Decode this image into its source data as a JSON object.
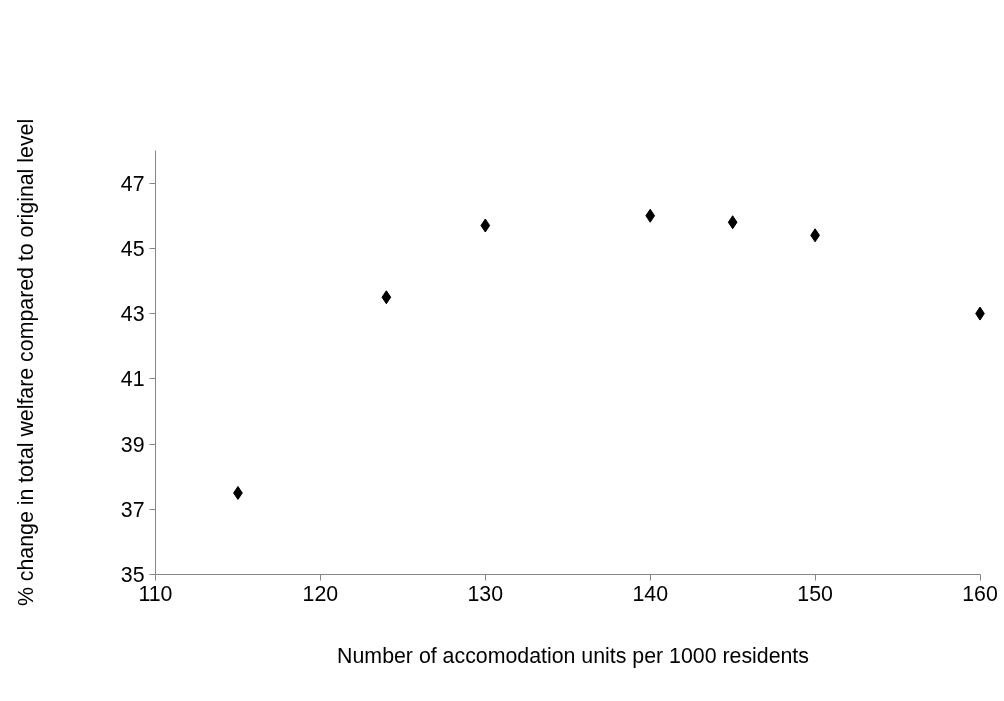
{
  "chart_data": {
    "type": "scatter",
    "xlabel": "Number of accomodation units per  1000 residents",
    "ylabel": "% change in total welfare compared to original level",
    "x": [
      115,
      124,
      130,
      140,
      145,
      150,
      160
    ],
    "series": [
      {
        "color": "#000000",
        "values": [
          37.5,
          43.5,
          45.7,
          46.0,
          45.8,
          45.4,
          43.0
        ]
      }
    ],
    "xlim": [
      110,
      160
    ],
    "xticks": [
      110,
      120,
      130,
      140,
      150,
      160
    ],
    "ylim": [
      35,
      48
    ],
    "yticks": [
      35,
      37,
      39,
      41,
      43,
      45,
      47
    ],
    "grid": false,
    "marker": "diamond"
  }
}
